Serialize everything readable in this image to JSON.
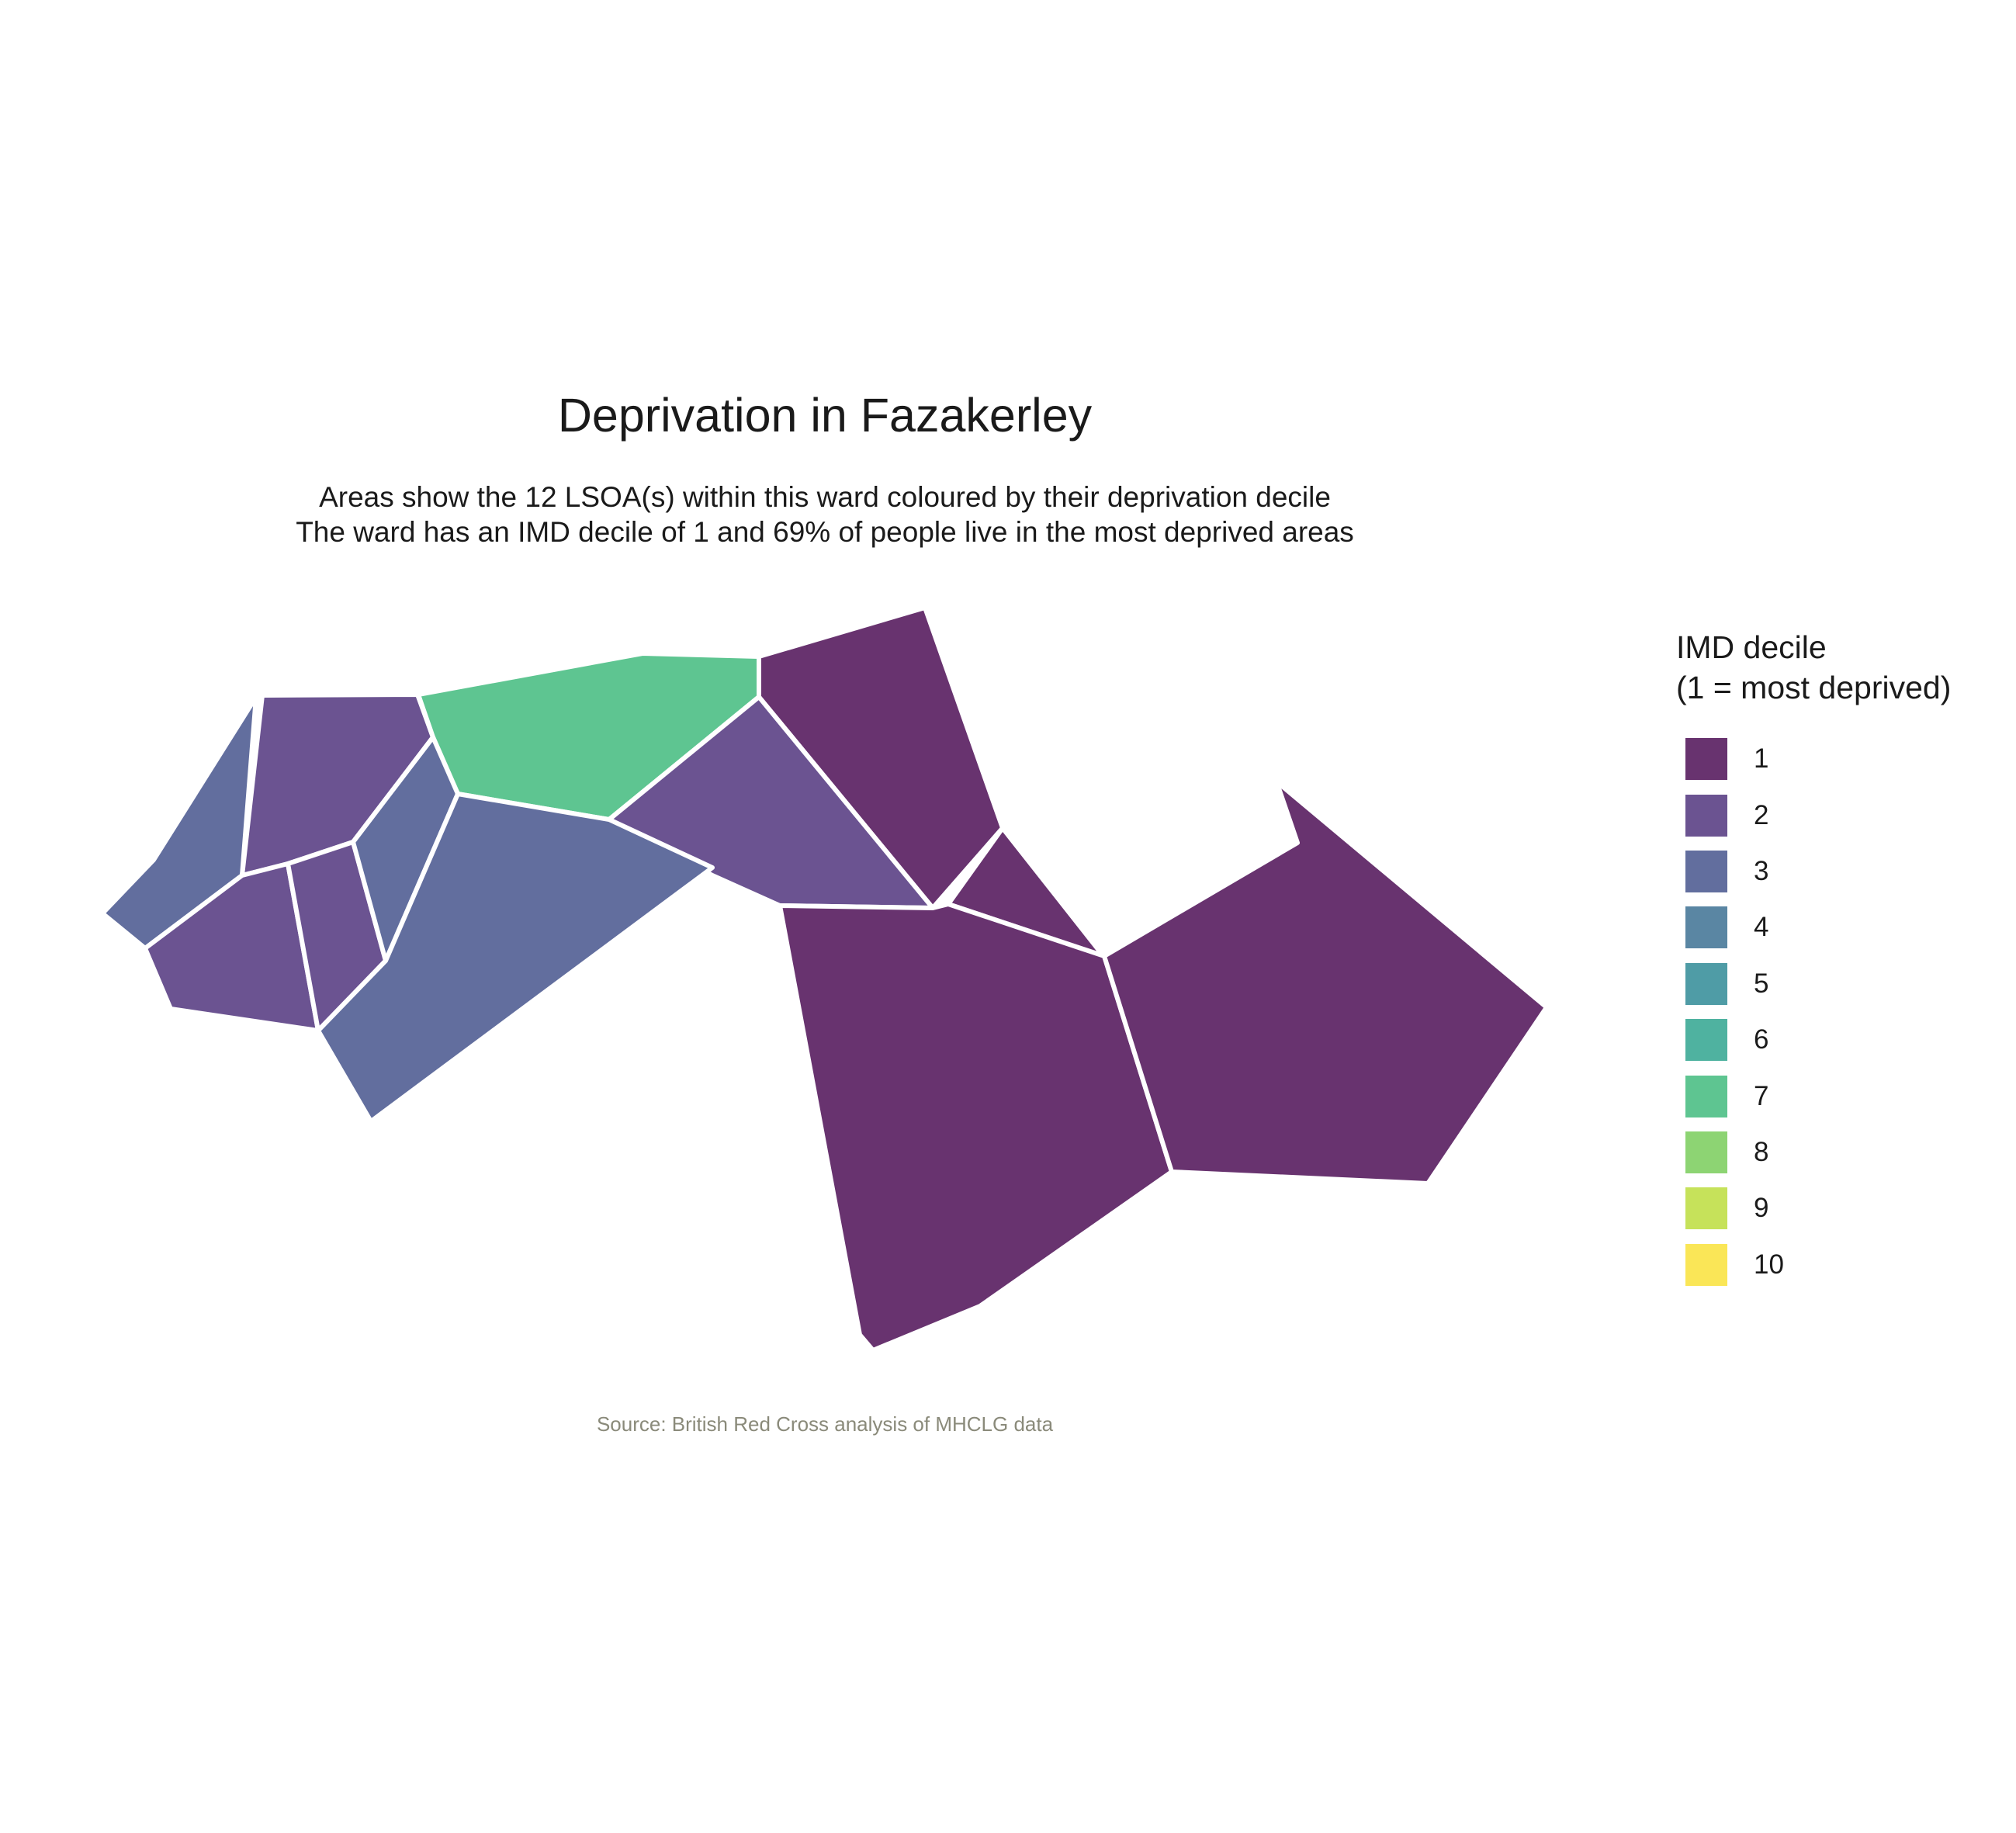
{
  "chart_data": {
    "type": "choropleth",
    "title": "Deprivation in Fazakerley",
    "subtitle_lines": [
      "Areas show the 12 LSOA(s) within this ward coloured by their deprivation decile",
      "The ward has an IMD decile of 1 and 69% of people live in the most deprived areas"
    ],
    "caption": "Source: British Red Cross analysis of MHCLG data",
    "legend": {
      "title_lines": [
        "IMD decile",
        "(1 = most deprived)"
      ],
      "placement": "right",
      "entries": [
        {
          "label": "1",
          "color": "#68336f"
        },
        {
          "label": "2",
          "color": "#6b5391"
        },
        {
          "label": "3",
          "color": "#626e9e"
        },
        {
          "label": "4",
          "color": "#5a86a3"
        },
        {
          "label": "5",
          "color": "#4f9ca6"
        },
        {
          "label": "6",
          "color": "#4fb2a0"
        },
        {
          "label": "7",
          "color": "#5ec591"
        },
        {
          "label": "8",
          "color": "#8dd473"
        },
        {
          "label": "9",
          "color": "#c6e25a"
        },
        {
          "label": "10",
          "color": "#fae657"
        }
      ]
    },
    "areas": [
      {
        "decile": 3
      },
      {
        "decile": 2
      },
      {
        "decile": 7
      },
      {
        "decile": 1
      },
      {
        "decile": 2
      },
      {
        "decile": 1
      },
      {
        "decile": 1
      },
      {
        "decile": 1
      },
      {
        "decile": 2
      },
      {
        "decile": 2
      },
      {
        "decile": 3
      },
      {
        "decile": 3
      }
    ]
  }
}
